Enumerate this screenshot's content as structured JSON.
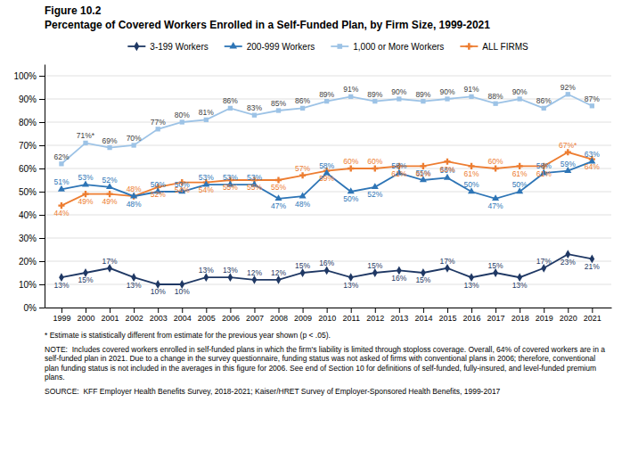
{
  "chart_data": {
    "type": "line",
    "title": "Figure 10.2",
    "subtitle": "Percentage of Covered Workers Enrolled in a Self-Funded Plan, by Firm Size, 1999-2021",
    "x": [
      1999,
      2000,
      2001,
      2002,
      2003,
      2004,
      2005,
      2006,
      2007,
      2008,
      2009,
      2010,
      2011,
      2012,
      2013,
      2014,
      2015,
      2016,
      2017,
      2018,
      2019,
      2020,
      2021
    ],
    "xlim": [
      1998.3,
      2021.8
    ],
    "xticks": [
      1999,
      2000,
      2001,
      2002,
      2003,
      2004,
      2005,
      2006,
      2007,
      2008,
      2009,
      2010,
      2011,
      2012,
      2013,
      2014,
      2015,
      2016,
      2017,
      2018,
      2019,
      2020,
      2021
    ],
    "ylim": [
      0,
      105
    ],
    "yticks": [
      {
        "value": 0,
        "label": "0%"
      },
      {
        "value": 10,
        "label": "10%"
      },
      {
        "value": 20,
        "label": "20%"
      },
      {
        "value": 30,
        "label": "30%"
      },
      {
        "value": 40,
        "label": "40%"
      },
      {
        "value": 50,
        "label": "50%"
      },
      {
        "value": 60,
        "label": "60%"
      },
      {
        "value": 70,
        "label": "70%"
      },
      {
        "value": 80,
        "label": "80%"
      },
      {
        "value": 90,
        "label": "90%"
      },
      {
        "value": 100,
        "label": "100%"
      }
    ],
    "grid": true,
    "legend": "top",
    "data_labels": true,
    "series": [
      {
        "name": "3-199 Workers",
        "color": "#1f3864",
        "marker": "diamond",
        "values": [
          13,
          15,
          17,
          13,
          10,
          10,
          13,
          13,
          12,
          12,
          15,
          16,
          13,
          15,
          16,
          15,
          17,
          13,
          15,
          13,
          17,
          23,
          21
        ],
        "value_labels": [
          "13%",
          "15%",
          "17%",
          "13%",
          "10%",
          "10%",
          "13%",
          "13%",
          "12%",
          "12%",
          "15%",
          "16%",
          "13%",
          "15%",
          "16%",
          "15%",
          "17%",
          "13%",
          "15%",
          "13%",
          "17%",
          "23%",
          "21%"
        ]
      },
      {
        "name": "200-999 Workers",
        "color": "#2e75b6",
        "marker": "triangle",
        "values": [
          51,
          53,
          52,
          48,
          50,
          50,
          53,
          53,
          53,
          47,
          48,
          58,
          50,
          52,
          58,
          55,
          56,
          50,
          47,
          50,
          58,
          59,
          63
        ],
        "value_labels": [
          "51%",
          "53%",
          "52%",
          "48%",
          "50%",
          "50%",
          "53%",
          "53%",
          "53%",
          "47%",
          "48%",
          "58%",
          "50%",
          "52%",
          "58%",
          "55%",
          "56%",
          "50%",
          "47%",
          "50%",
          "58%",
          "59%",
          "63%"
        ]
      },
      {
        "name": "1,000 or More Workers",
        "color": "#9dc3e6",
        "marker": "square",
        "values": [
          62,
          71,
          69,
          70,
          77,
          80,
          81,
          86,
          83,
          85,
          86,
          89,
          91,
          89,
          90,
          89,
          90,
          91,
          88,
          90,
          86,
          92,
          87
        ],
        "value_labels": [
          "62%",
          "71%*",
          "69%",
          "70%",
          "77%",
          "80%",
          "81%",
          "86%",
          "83%",
          "85%",
          "86%",
          "89%",
          "91%",
          "89%",
          "90%",
          "89%",
          "90%",
          "91%",
          "88%",
          "90%",
          "86%",
          "92%",
          "87%"
        ]
      },
      {
        "name": "ALL FIRMS",
        "color": "#ed7d31",
        "marker": "plus",
        "values": [
          44,
          49,
          49,
          48,
          52,
          54,
          54,
          55,
          55,
          55,
          57,
          59,
          60,
          60,
          61,
          61,
          63,
          61,
          60,
          61,
          61,
          67,
          64
        ],
        "value_labels": [
          "44%",
          "49%",
          "49%",
          "48%",
          "52%",
          "54%",
          "54%",
          "55%",
          "55%",
          "55%",
          "57%",
          "59%",
          "60%",
          "60%",
          "61%",
          "61%",
          "63%",
          "61%",
          "60%",
          "61%",
          "61%",
          "67%*",
          "64%"
        ]
      }
    ],
    "annotations": [
      "* Estimate is statistically different from estimate for the previous year shown (p < .05).",
      "NOTE:  Includes covered workers enrolled in self-funded plans in which the firm's liability is limited through stoploss coverage. Overall, 64% of covered workers are in a self-funded plan in 2021. Due to a change in the survey questionnaire, funding status was not asked of firms with conventional plans in 2006; therefore, conventional plan funding status is not included in the averages in this figure for 2006. See end of Section 10 for definitions of self-funded, fully-insured, and level-funded premium plans.",
      "SOURCE:  KFF Employer Health Benefits Survey, 2018-2021; Kaiser/HRET Survey of Employer-Sponsored Health Benefits, 1999-2017"
    ]
  }
}
